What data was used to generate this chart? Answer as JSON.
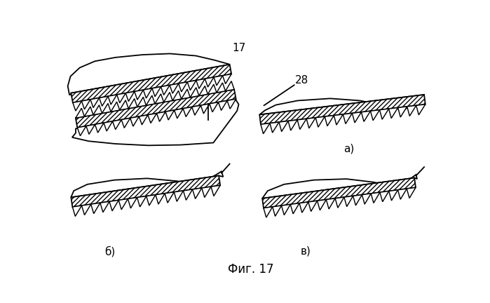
{
  "title": "Фиг. 17",
  "label_17": "17",
  "label_28": "28",
  "label_a": "а)",
  "label_b": "б)",
  "label_v": "в)",
  "background_color": "#ffffff",
  "line_color": "#000000",
  "figsize": [
    6.99,
    4.32
  ],
  "dpi": 100
}
